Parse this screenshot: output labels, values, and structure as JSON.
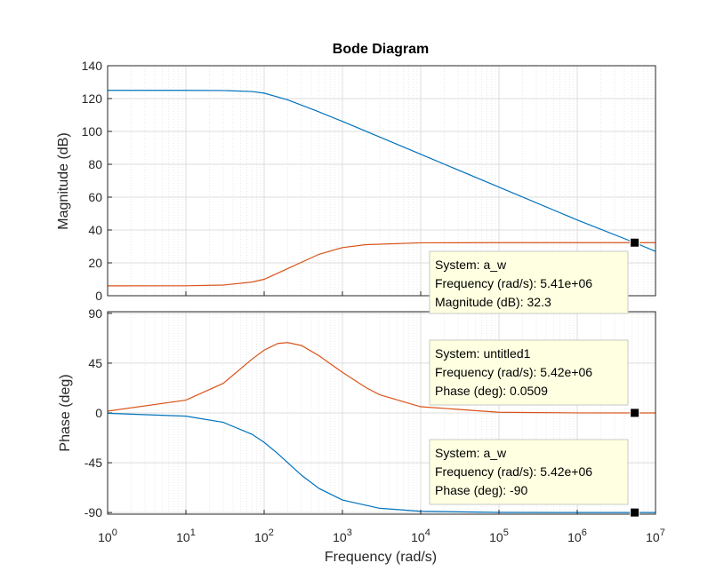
{
  "chart_data": {
    "type": "line",
    "title": "Bode Diagram",
    "xlabel": "Frequency  (rad/s)",
    "x_scale": "log",
    "xlim": [
      1,
      10000000
    ],
    "x_tick_labels": [
      {
        "base": "10",
        "exp": "0"
      },
      {
        "base": "10",
        "exp": "1"
      },
      {
        "base": "10",
        "exp": "2"
      },
      {
        "base": "10",
        "exp": "3"
      },
      {
        "base": "10",
        "exp": "4"
      },
      {
        "base": "10",
        "exp": "5"
      },
      {
        "base": "10",
        "exp": "6"
      },
      {
        "base": "10",
        "exp": "7"
      }
    ],
    "grid": true,
    "colors": {
      "series1": "#0072BD",
      "series2": "#D95319"
    },
    "magnitude": {
      "ylabel": "Magnitude (dB)",
      "ylim": [
        0,
        140
      ],
      "yticks": [
        "0",
        "20",
        "40",
        "60",
        "80",
        "100",
        "120",
        "140"
      ],
      "series": [
        {
          "color": "#0072BD",
          "x": [
            1,
            10,
            30,
            70,
            100,
            200,
            500,
            1000,
            10000,
            100000,
            1000000,
            5410000,
            10000000
          ],
          "y": [
            125,
            125,
            124.9,
            124.3,
            123.3,
            119.2,
            111.9,
            106.1,
            86.1,
            66.1,
            46.1,
            32.3,
            27
          ]
        },
        {
          "color": "#D95319",
          "x": [
            1,
            10,
            30,
            70,
            100,
            200,
            500,
            1000,
            2000,
            10000,
            100000,
            1000000,
            10000000
          ],
          "y": [
            6,
            6.05,
            6.5,
            8.3,
            10,
            16.5,
            25.2,
            29.3,
            31.1,
            32.2,
            32.3,
            32.3,
            32.3
          ]
        }
      ]
    },
    "phase": {
      "ylabel": "Phase (deg)",
      "ylim": [
        -91.5,
        91.5
      ],
      "yticks": [
        "90",
        "45",
        "0",
        "-45",
        "-90"
      ],
      "series": [
        {
          "color": "#0072BD",
          "x": [
            1,
            10,
            30,
            70,
            100,
            150,
            200,
            300,
            500,
            1000,
            3000,
            10000,
            100000,
            1000000,
            10000000
          ],
          "y": [
            -0.3,
            -2.9,
            -8.5,
            -19.3,
            -26.6,
            -36.9,
            -45,
            -56.3,
            -68.2,
            -78.7,
            -86.2,
            -88.9,
            -89.9,
            -90,
            -90
          ]
        },
        {
          "color": "#D95319",
          "x": [
            1,
            10,
            30,
            70,
            100,
            150,
            200,
            300,
            500,
            1000,
            2000,
            3000,
            10000,
            100000,
            1000000,
            10000000
          ],
          "y": [
            1.6,
            11.6,
            26.7,
            48.6,
            56.8,
            62.8,
            63.6,
            60.9,
            51.8,
            36.7,
            22.9,
            16.4,
            5.6,
            0.6,
            0.06,
            0.01
          ]
        }
      ]
    },
    "datatips": [
      {
        "panel": "magnitude",
        "x": 5410000,
        "y": 32.3,
        "lines": [
          "System: a_w",
          "Frequency (rad/s): 5.41e+06",
          "Magnitude (dB): 32.3"
        ]
      },
      {
        "panel": "phase",
        "x": 5420000,
        "y": 0.0509,
        "lines": [
          "System: untitled1",
          "Frequency (rad/s): 5.42e+06",
          "Phase (deg): 0.0509"
        ]
      },
      {
        "panel": "phase",
        "x": 5420000,
        "y": -90,
        "lines": [
          "System: a_w",
          "Frequency (rad/s): 5.42e+06",
          "Phase (deg): -90"
        ]
      }
    ]
  }
}
